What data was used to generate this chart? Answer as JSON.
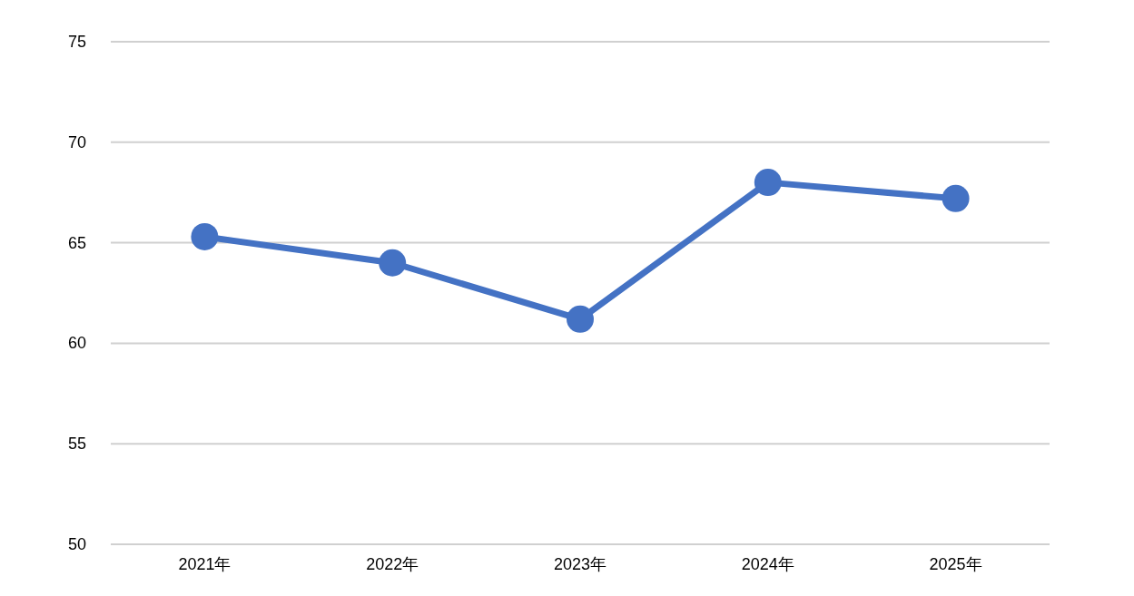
{
  "chart_data": {
    "type": "line",
    "categories": [
      "2021年",
      "2022年",
      "2023年",
      "2024年",
      "2025年"
    ],
    "series": [
      {
        "color": "#4472c4",
        "values": [
          65.3,
          64.0,
          61.2,
          68.0,
          67.2
        ]
      }
    ],
    "ylim": [
      50,
      75
    ],
    "yticks": [
      50,
      55,
      60,
      65,
      70,
      75
    ],
    "grid": "y",
    "marker": "circle",
    "line_style": "solid"
  }
}
